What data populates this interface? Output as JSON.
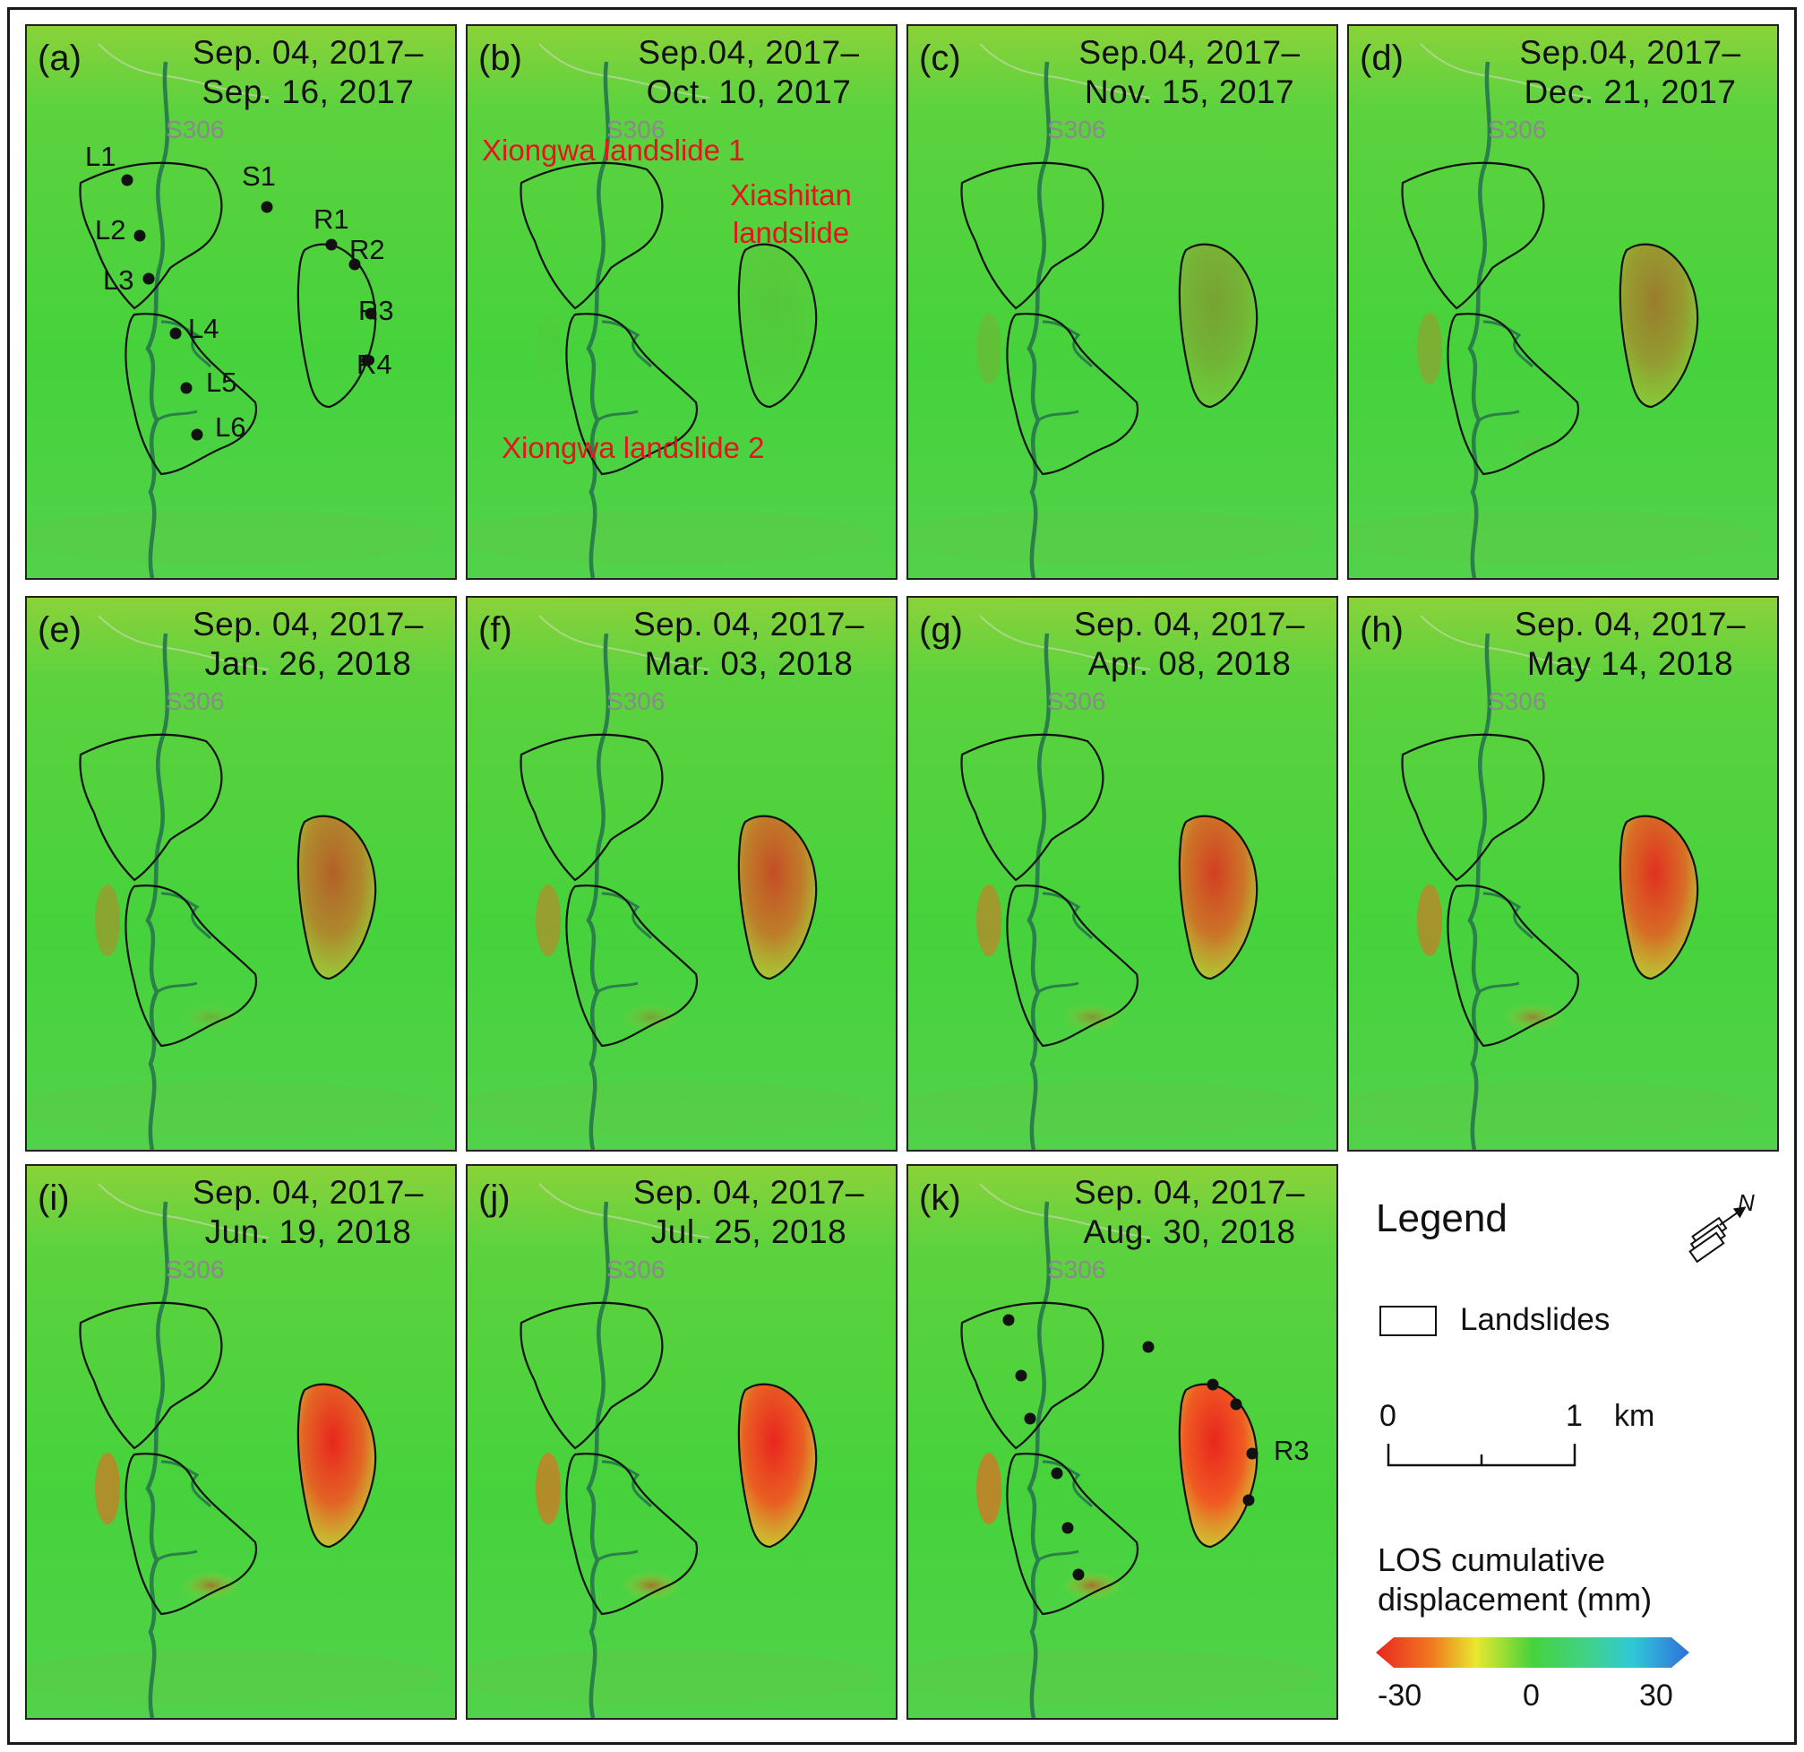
{
  "panels": [
    {
      "id": "a",
      "label": "(a)",
      "date_line1": "Sep. 04, 2017–",
      "date_line2": "Sep. 16, 2017",
      "road": "S306",
      "deformation": 0.0
    },
    {
      "id": "b",
      "label": "(b)",
      "date_line1": "Sep.04, 2017–",
      "date_line2": "Oct. 10, 2017",
      "road": "S306",
      "deformation": 0.05
    },
    {
      "id": "c",
      "label": "(c)",
      "date_line1": "Sep.04, 2017–",
      "date_line2": "Nov. 15, 2017",
      "road": "S306",
      "deformation": 0.25
    },
    {
      "id": "d",
      "label": "(d)",
      "date_line1": "Sep.04, 2017–",
      "date_line2": "Dec. 21, 2017",
      "road": "S306",
      "deformation": 0.45
    },
    {
      "id": "e",
      "label": "(e)",
      "date_line1": "Sep. 04, 2017–",
      "date_line2": "Jan. 26, 2018",
      "road": "S306",
      "deformation": 0.6
    },
    {
      "id": "f",
      "label": "(f)",
      "date_line1": "Sep. 04, 2017–",
      "date_line2": "Mar. 03, 2018",
      "road": "S306",
      "deformation": 0.7
    },
    {
      "id": "g",
      "label": "(g)",
      "date_line1": "Sep. 04, 2017–",
      "date_line2": "Apr. 08, 2018",
      "road": "S306",
      "deformation": 0.78
    },
    {
      "id": "h",
      "label": "(h)",
      "date_line1": "Sep. 04, 2017–",
      "date_line2": "May 14, 2018",
      "road": "S306",
      "deformation": 0.85
    },
    {
      "id": "i",
      "label": "(i)",
      "date_line1": "Sep. 04, 2017–",
      "date_line2": "Jun. 19, 2018",
      "road": "S306",
      "deformation": 0.92
    },
    {
      "id": "j",
      "label": "(j)",
      "date_line1": "Sep. 04, 2017–",
      "date_line2": "Jul. 25, 2018",
      "road": "S306",
      "deformation": 0.96
    },
    {
      "id": "k",
      "label": "(k)",
      "date_line1": "Sep. 04, 2017–",
      "date_line2": "Aug. 30, 2018",
      "road": "S306",
      "deformation": 1.0
    }
  ],
  "points_panel_a": [
    "L1",
    "L2",
    "L3",
    "L4",
    "L5",
    "L6",
    "S1",
    "R1",
    "R2",
    "R3",
    "R4"
  ],
  "point_label_panel_k": "R3",
  "landslide_names": {
    "xiongwa_1": "Xiongwa landslide 1",
    "xiashitan": "Xiashitan landslide",
    "xiongwa_2": "Xiongwa landslide 2"
  },
  "legend": {
    "title": "Legend",
    "north_letter": "N",
    "landslides_label": "Landslides",
    "scale_start": "0",
    "scale_end": "1",
    "scale_unit": "km",
    "colorbar_title_line1": "LOS cumulative",
    "colorbar_title_line2": "displacement (mm)",
    "colorbar_min": "-30",
    "colorbar_mid": "0",
    "colorbar_max": "30"
  },
  "colors": {
    "background_green": "#46d23c",
    "deformation_red": "#e8261e",
    "river": "#2a7f4a",
    "outline": "#111111",
    "label_red": "#e6141e"
  }
}
